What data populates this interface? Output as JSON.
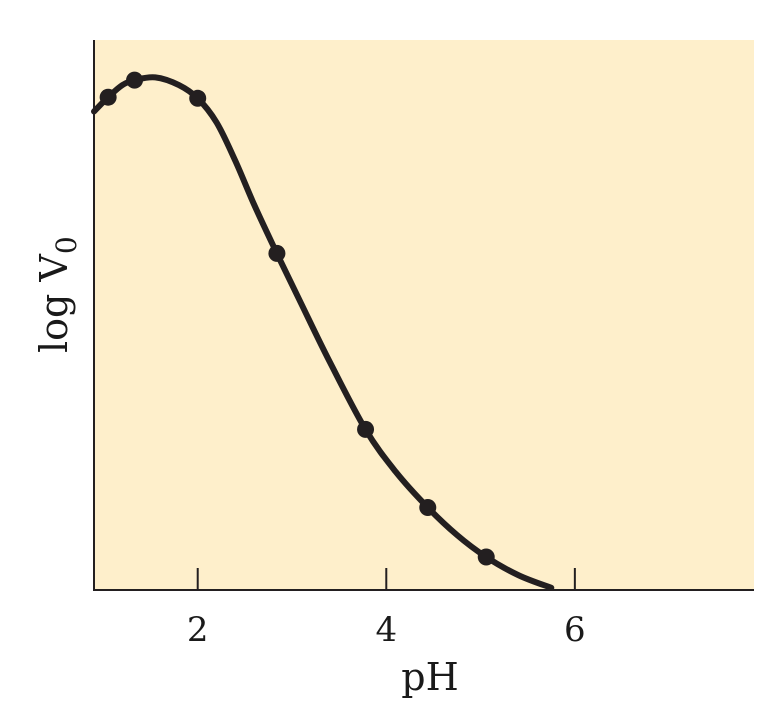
{
  "chart_data": {
    "type": "line",
    "title": "",
    "xlabel": "pH",
    "ylabel_main": "log V",
    "ylabel_sub": "0",
    "xlim": [
      0.9,
      7.9
    ],
    "ylim": [
      0,
      1
    ],
    "x_ticks": [
      {
        "value": 2,
        "label": "2"
      },
      {
        "value": 4,
        "label": "4"
      },
      {
        "value": 6,
        "label": "6"
      }
    ],
    "y_ticks_shown": false,
    "grid": false,
    "points": [
      {
        "x": 1.05,
        "y": 0.896
      },
      {
        "x": 1.33,
        "y": 0.927
      },
      {
        "x": 2.0,
        "y": 0.894
      },
      {
        "x": 2.84,
        "y": 0.612
      },
      {
        "x": 3.78,
        "y": 0.292
      },
      {
        "x": 4.44,
        "y": 0.15
      },
      {
        "x": 5.06,
        "y": 0.06
      }
    ],
    "curve": [
      {
        "x": 0.9,
        "y": 0.87
      },
      {
        "x": 1.05,
        "y": 0.896
      },
      {
        "x": 1.2,
        "y": 0.918
      },
      {
        "x": 1.33,
        "y": 0.927
      },
      {
        "x": 1.55,
        "y": 0.932
      },
      {
        "x": 1.8,
        "y": 0.918
      },
      {
        "x": 2.0,
        "y": 0.894
      },
      {
        "x": 2.2,
        "y": 0.85
      },
      {
        "x": 2.4,
        "y": 0.78
      },
      {
        "x": 2.6,
        "y": 0.7
      },
      {
        "x": 2.84,
        "y": 0.612
      },
      {
        "x": 3.1,
        "y": 0.52
      },
      {
        "x": 3.4,
        "y": 0.415
      },
      {
        "x": 3.78,
        "y": 0.292
      },
      {
        "x": 4.1,
        "y": 0.215
      },
      {
        "x": 4.44,
        "y": 0.15
      },
      {
        "x": 4.75,
        "y": 0.1
      },
      {
        "x": 5.06,
        "y": 0.06
      },
      {
        "x": 5.4,
        "y": 0.027
      },
      {
        "x": 5.75,
        "y": 0.004
      }
    ],
    "colors": {
      "plot_background": "#FEEFCB",
      "line": "#231F20",
      "axis": "#231F20"
    }
  }
}
